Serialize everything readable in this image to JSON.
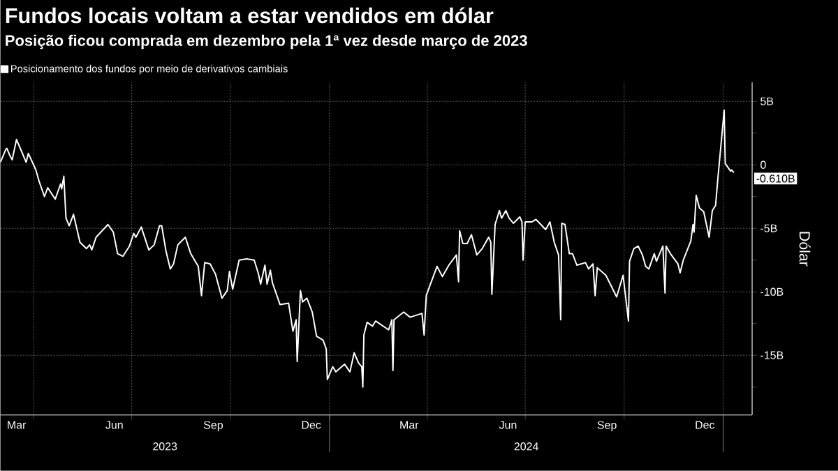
{
  "chart_data": {
    "type": "line",
    "title": "Fundos locais voltam a estar vendidos em dólar",
    "subtitle": "Posição ficou comprada em dezembro pela 1ª vez desde março de 2023",
    "ylabel": "Dólar",
    "legend": "top left",
    "grid": true,
    "xlim": [
      "2023-03-01",
      "2025-01-28"
    ],
    "ylim": [
      -19.7,
      6.5
    ],
    "xticks": [
      {
        "value": "2023-03-16",
        "label": "Mar"
      },
      {
        "value": "2023-04-01",
        "label": null
      },
      {
        "value": "2023-06-15",
        "label": "Jun"
      },
      {
        "value": "2023-07-01",
        "label": null
      },
      {
        "value": "2023-09-15",
        "label": "Sep"
      },
      {
        "value": "2023-10-01",
        "label": null
      },
      {
        "value": "2023-12-15",
        "label": "Dec"
      },
      {
        "value": "2024-01-01",
        "label": null
      },
      {
        "value": "2024-03-15",
        "label": "Mar"
      },
      {
        "value": "2024-04-01",
        "label": null
      },
      {
        "value": "2024-06-15",
        "label": "Jun"
      },
      {
        "value": "2024-07-01",
        "label": null
      },
      {
        "value": "2024-09-15",
        "label": "Sep"
      },
      {
        "value": "2024-10-01",
        "label": null
      },
      {
        "value": "2024-12-15",
        "label": "Dec"
      },
      {
        "value": "2025-01-01",
        "label": null
      }
    ],
    "yticks": [
      {
        "value": 5,
        "label": "5B"
      },
      {
        "value": 2.5,
        "label": null
      },
      0,
      {
        "value": -2.5,
        "label": null
      },
      {
        "value": -5,
        "label": "-5B"
      },
      {
        "value": -7.5,
        "label": null
      },
      {
        "value": -10,
        "label": "-10B"
      },
      {
        "value": -12.5,
        "label": null
      },
      {
        "value": -15,
        "label": "-15B"
      },
      {
        "value": -17.5,
        "label": null
      }
    ],
    "annotations": [
      "2023",
      "2024",
      {
        "text": "-0.610B",
        "x": "2025-01-11",
        "y": -0.61
      }
    ],
    "x": [
      "2023-03-01",
      "2023-03-06",
      "2023-03-07",
      "2023-03-10",
      "2023-03-12",
      "2023-03-16",
      "2023-03-19",
      "2023-03-25",
      "2023-03-27",
      "2023-04-03",
      "2023-04-06",
      "2023-04-11",
      "2023-04-14",
      "2023-04-21",
      "2023-04-26",
      "2023-04-27",
      "2023-04-29",
      "2023-05-01",
      "2023-05-04",
      "2023-05-08",
      "2023-05-14",
      "2023-05-20",
      "2023-05-23",
      "2023-05-25",
      "2023-05-29",
      "2023-06-09",
      "2023-06-14",
      "2023-06-18",
      "2023-06-23",
      "2023-06-29",
      "2023-07-03",
      "2023-07-05",
      "2023-07-10",
      "2023-07-17",
      "2023-07-22",
      "2023-07-27",
      "2023-07-29",
      "2023-08-02",
      "2023-08-06",
      "2023-08-09",
      "2023-08-13",
      "2023-08-20",
      "2023-08-25",
      "2023-09-01",
      "2023-09-04",
      "2023-09-07",
      "2023-09-12",
      "2023-09-17",
      "2023-09-23",
      "2023-09-28",
      "2023-09-30",
      "2023-10-03",
      "2023-10-09",
      "2023-10-16",
      "2023-10-23",
      "2023-10-27",
      "2023-10-29",
      "2023-11-02",
      "2023-11-04",
      "2023-11-07",
      "2023-11-09",
      "2023-11-16",
      "2023-11-24",
      "2023-11-28",
      "2023-12-01",
      "2023-12-02",
      "2023-12-05",
      "2023-12-07",
      "2023-12-11",
      "2023-12-16",
      "2023-12-20",
      "2023-12-26",
      "2023-12-29",
      "2023-12-30",
      "2024-01-04",
      "2024-01-07",
      "2024-01-15",
      "2024-01-20",
      "2024-01-24",
      "2024-01-28",
      "2024-01-31",
      "2024-02-01",
      "2024-02-02",
      "2024-02-05",
      "2024-02-10",
      "2024-02-13",
      "2024-02-25",
      "2024-02-28",
      "2024-02-29",
      "2024-03-01",
      "2024-03-10",
      "2024-03-16",
      "2024-03-27",
      "2024-03-29",
      "2024-03-31",
      "2024-04-03",
      "2024-04-10",
      "2024-04-15",
      "2024-04-21",
      "2024-04-28",
      "2024-04-30",
      "2024-05-01",
      "2024-05-04",
      "2024-05-08",
      "2024-05-12",
      "2024-05-17",
      "2024-05-22",
      "2024-05-28",
      "2024-05-30",
      "2024-05-31",
      "2024-06-03",
      "2024-06-07",
      "2024-06-09",
      "2024-06-13",
      "2024-06-16",
      "2024-06-20",
      "2024-06-26",
      "2024-06-28",
      "2024-06-29",
      "2024-07-01",
      "2024-07-07",
      "2024-07-11",
      "2024-07-20",
      "2024-07-24",
      "2024-07-28",
      "2024-08-01",
      "2024-08-03",
      "2024-08-04",
      "2024-08-07",
      "2024-08-11",
      "2024-08-14",
      "2024-08-18",
      "2024-08-26",
      "2024-08-29",
      "2024-09-02",
      "2024-09-04",
      "2024-09-06",
      "2024-09-14",
      "2024-09-24",
      "2024-09-30",
      "2024-10-05",
      "2024-10-06",
      "2024-10-10",
      "2024-10-14",
      "2024-10-18",
      "2024-10-21",
      "2024-10-24",
      "2024-10-29",
      "2024-10-31",
      "2024-11-06",
      "2024-11-08",
      "2024-11-09",
      "2024-11-13",
      "2024-11-20",
      "2024-11-22",
      "2024-11-25",
      "2024-12-02",
      "2024-12-04",
      "2024-12-05",
      "2024-12-07",
      "2024-12-10",
      "2024-12-14",
      "2024-12-19",
      "2024-12-22",
      "2024-12-25",
      "2024-12-27",
      "2025-01-02",
      "2025-01-03",
      "2025-01-08",
      "2025-01-09",
      "2025-01-11"
    ],
    "series": [
      {
        "name": "Posicionamento dos fundos por meio de derivativos cambiais",
        "color": "#ffffff",
        "values": [
          0.2,
          1.2,
          1.3,
          0.7,
          0.4,
          2.0,
          1.4,
          0.2,
          0.9,
          -0.4,
          -1.3,
          -2.5,
          -1.8,
          -2.7,
          -1.5,
          -1.9,
          -0.9,
          -4.2,
          -4.8,
          -3.9,
          -6.1,
          -6.6,
          -6.3,
          -6.7,
          -5.7,
          -4.7,
          -5.3,
          -7.0,
          -7.2,
          -6.4,
          -5.4,
          -5.7,
          -4.9,
          -6.7,
          -6.3,
          -4.8,
          -4.8,
          -6.8,
          -8.2,
          -7.8,
          -6.3,
          -5.7,
          -7.0,
          -8.0,
          -10.3,
          -7.7,
          -7.8,
          -8.6,
          -10.5,
          -9.9,
          -8.4,
          -9.8,
          -7.5,
          -7.4,
          -7.5,
          -8.6,
          -9.4,
          -7.9,
          -9.4,
          -8.3,
          -9.3,
          -11.0,
          -10.9,
          -13.1,
          -12.2,
          -15.5,
          -9.9,
          -10.8,
          -10.5,
          -11.6,
          -13.5,
          -13.8,
          -14.5,
          -16.9,
          -15.9,
          -16.3,
          -15.7,
          -16.3,
          -14.8,
          -15.6,
          -15.9,
          -17.5,
          -13.4,
          -12.4,
          -12.7,
          -12.3,
          -13.0,
          -12.2,
          -16.2,
          -12.2,
          -11.6,
          -12.0,
          -11.7,
          -13.4,
          -10.3,
          -9.6,
          -8.0,
          -8.8,
          -7.9,
          -7.1,
          -9.2,
          -5.2,
          -6.2,
          -6.2,
          -5.5,
          -7.1,
          -6.6,
          -5.7,
          -6.1,
          -10.2,
          -4.7,
          -3.6,
          -4.2,
          -3.6,
          -4.2,
          -4.6,
          -4.1,
          -4.5,
          -7.5,
          -4.5,
          -4.5,
          -4.3,
          -5.1,
          -4.5,
          -6.1,
          -7.1,
          -12.2,
          -4.6,
          -4.7,
          -7.0,
          -7.0,
          -7.9,
          -7.7,
          -8.2,
          -7.8,
          -10.3,
          -8.1,
          -8.7,
          -10.4,
          -8.7,
          -12.3,
          -7.6,
          -6.6,
          -6.4,
          -7.1,
          -8.0,
          -8.2,
          -7.0,
          -7.6,
          -6.4,
          -10.1,
          -6.4,
          -7.0,
          -7.8,
          -8.5,
          -7.5,
          -6.0,
          -4.7,
          -5.3,
          -2.4,
          -3.4,
          -3.7,
          -5.7,
          -3.6,
          -3.2,
          -1.2,
          4.3,
          0.1,
          -0.5,
          -0.4,
          -0.61
        ]
      }
    ]
  }
}
